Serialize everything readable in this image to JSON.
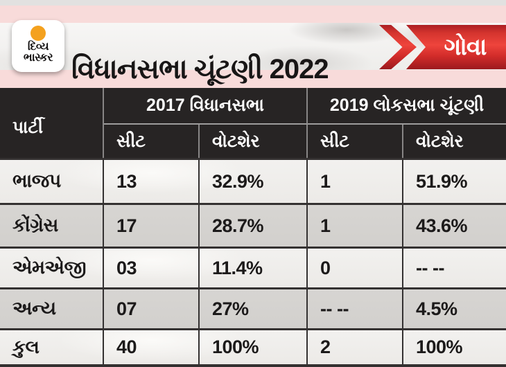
{
  "brand": {
    "logo_line1": "દિવ્ય",
    "logo_line2": "ભાસ્કર"
  },
  "header": {
    "title": "વિધાનસભા ચૂંટણી 2022",
    "region_label": "ગોવા"
  },
  "table_header": {
    "party": "પાર્ટી",
    "group_2017": "2017 વિધાનસભા",
    "group_2019": "2019 લોકસભા ચૂંટણી",
    "seat": "સીટ",
    "voteshare": "વોટશેર"
  },
  "colors": {
    "accent_red": "#d92b26",
    "logo_orange": "#f4a11e",
    "frame_pink": "#f8dbda",
    "table_header_bg": "#272424",
    "row_shade_gray": "#d5d3d0"
  },
  "chart_data": {
    "type": "table",
    "title": "વિધાનસભા ચૂંટણી 2022",
    "region": "ગોવા",
    "column_groups": [
      "2017 વિધાનસભા",
      "2019 લોકસભા ચૂંટણી"
    ],
    "columns": [
      "પાર્ટી",
      "સીટ (2017)",
      "વોટશેર (2017)",
      "સીટ (2019)",
      "વોટશેર (2019)"
    ],
    "rows": [
      [
        "ભાજપ",
        "13",
        "32.9%",
        "1",
        "51.9%"
      ],
      [
        "કોંગ્રેસ",
        "17",
        "28.7%",
        "1",
        "43.6%"
      ],
      [
        "એમએજી",
        "03",
        "11.4%",
        "0",
        "-- --"
      ],
      [
        "અન્ય",
        "07",
        "27%",
        "-- --",
        "4.5%"
      ],
      [
        "કુલ",
        "40",
        "100%",
        "2",
        "100%"
      ]
    ]
  }
}
